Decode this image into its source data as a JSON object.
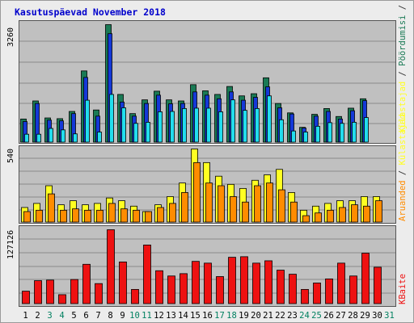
{
  "chart_data": {
    "title": "Kasutuspäevad November 2018",
    "type": "bar",
    "categories": [
      "1",
      "2",
      "3",
      "4",
      "5",
      "6",
      "7",
      "8",
      "9",
      "10",
      "11",
      "12",
      "13",
      "14",
      "15",
      "16",
      "17",
      "18",
      "19",
      "20",
      "21",
      "22",
      "23",
      "24",
      "25",
      "26",
      "27",
      "28",
      "29",
      "30",
      "31"
    ],
    "weekend_days": [
      "3",
      "4",
      "10",
      "11",
      "17",
      "18",
      "24",
      "25",
      "31"
    ],
    "colors": {
      "tick_weekday": "#000000",
      "tick_weekend": "#008060",
      "hits": "#1a7a55",
      "files": "#1438d8",
      "pages": "#22ddee",
      "visits": "#ffff22",
      "sites": "#ff8c00",
      "bandwidth": "#ee1111"
    },
    "panels": [
      {
        "id": "top",
        "ymax_label": "3260",
        "ymax": 3260,
        "legend": [
          {
            "label": "Külastajad",
            "color": "#ffff22"
          },
          {
            "label": "Pöördumisi",
            "color": "#1a7a55"
          },
          {
            "label": "Faile",
            "color": "#1438d8"
          },
          {
            "label": "Lehekülgi",
            "color": "#22ddee"
          }
        ],
        "series": [
          {
            "name": "Pöördumisi",
            "color": "#1a7a55",
            "values": [
              650,
              1150,
              680,
              660,
              860,
              1980,
              900,
              3260,
              1330,
              800,
              1180,
              1420,
              1180,
              1150,
              1600,
              1430,
              1330,
              1550,
              1290,
              1350,
              1790,
              1080,
              820,
              420,
              780,
              940,
              720,
              950,
              1210,
              null,
              null
            ]
          },
          {
            "name": "Faile",
            "color": "#1438d8",
            "values": [
              580,
              1080,
              620,
              600,
              800,
              1800,
              730,
              3010,
              1120,
              730,
              1080,
              1310,
              1070,
              1080,
              1400,
              1310,
              1210,
              1400,
              1170,
              1250,
              1540,
              960,
              790,
              400,
              730,
              860,
              650,
              880,
              1160,
              null,
              null
            ]
          },
          {
            "name": "Lehekülgi",
            "color": "#22ddee",
            "values": [
              230,
              230,
              390,
              350,
              240,
              1170,
              290,
              1330,
              960,
              530,
              560,
              850,
              860,
              940,
              950,
              950,
              850,
              1180,
              890,
              940,
              1290,
              630,
              320,
              290,
              450,
              550,
              530,
              560,
              690,
              null,
              null
            ]
          }
        ]
      },
      {
        "id": "mid",
        "ymax_label": "540",
        "ymax": 540,
        "legend": [
          {
            "label": "Aruanded",
            "color": "#ff8c00"
          },
          {
            "label": "Külastajad",
            "color": "#ffff22"
          }
        ],
        "series": [
          {
            "name": "Külastajad",
            "color": "#ffff22",
            "values": [
              110,
              140,
              270,
              130,
              160,
              130,
              140,
              180,
              160,
              120,
              80,
              130,
              190,
              290,
              540,
              440,
              340,
              280,
              250,
              310,
              350,
              390,
              220,
              90,
              120,
              140,
              160,
              160,
              190,
              190,
              null
            ]
          },
          {
            "name": "Aruanded",
            "color": "#ff8c00",
            "values": [
              80,
              90,
              210,
              90,
              100,
              90,
              90,
              140,
              100,
              90,
              80,
              110,
              140,
              220,
              440,
              290,
              270,
              190,
              150,
              270,
              290,
              240,
              150,
              50,
              70,
              90,
              110,
              130,
              120,
              160,
              null
            ]
          }
        ]
      },
      {
        "id": "bot",
        "ymax_label": "127126",
        "ymax": 127126,
        "legend": [
          {
            "label": "KBaite",
            "color": "#ee1111"
          }
        ],
        "series": [
          {
            "name": "KBaite",
            "color": "#ee1111",
            "values": [
              22000,
              40000,
              41000,
              16000,
              42000,
              68000,
              35000,
              127126,
              72000,
              25000,
              101000,
              57000,
              48000,
              52000,
              73000,
              70000,
              47000,
              80000,
              81000,
              70000,
              74000,
              58000,
              51000,
              25000,
              36000,
              43000,
              70000,
              48000,
              87000,
              63000,
              null
            ]
          }
        ]
      }
    ]
  }
}
